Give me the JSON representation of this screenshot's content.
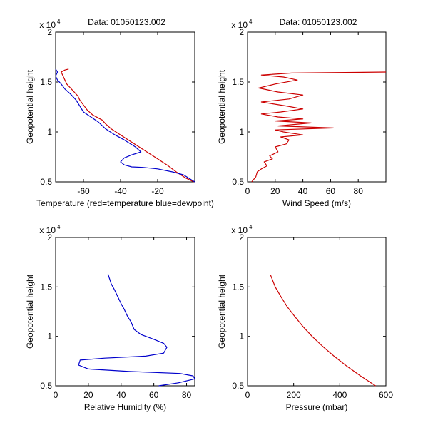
{
  "chart_data": [
    {
      "type": "line",
      "title": "Data: 01050123.002",
      "xlabel": "Temperature (red=temperature blue=dewpoint)",
      "ylabel": "Geopotential height",
      "y_exponent_label": "x 10",
      "y_exponent_power": "4",
      "xlim": [
        -75,
        0
      ],
      "ylim": [
        0.5,
        2
      ],
      "xticks": [
        -60,
        -40,
        -20
      ],
      "xtick_labels": [
        "-60",
        "-40",
        "-20"
      ],
      "yticks": [
        0.5,
        1,
        1.5,
        2
      ],
      "ytick_labels": [
        "0.5",
        "1",
        "1.5",
        "2"
      ],
      "grid": false,
      "series": [
        {
          "name": "temperature",
          "color": "#cc0000",
          "points": [
            [
              -0.5,
              0.5
            ],
            [
              -5,
              0.54
            ],
            [
              -10,
              0.6
            ],
            [
              -15,
              0.67
            ],
            [
              -20,
              0.73
            ],
            [
              -25,
              0.79
            ],
            [
              -30,
              0.85
            ],
            [
              -35,
              0.91
            ],
            [
              -40,
              0.97
            ],
            [
              -45,
              1.03
            ],
            [
              -48,
              1.08
            ],
            [
              -50,
              1.12
            ],
            [
              -55,
              1.17
            ],
            [
              -58,
              1.22
            ],
            [
              -60,
              1.27
            ],
            [
              -62,
              1.32
            ],
            [
              -63,
              1.36
            ],
            [
              -65,
              1.4
            ],
            [
              -67,
              1.44
            ],
            [
              -69,
              1.48
            ],
            [
              -70,
              1.52
            ],
            [
              -71,
              1.56
            ],
            [
              -72,
              1.6
            ],
            [
              -70,
              1.62
            ],
            [
              -68,
              1.63
            ]
          ]
        },
        {
          "name": "dewpoint",
          "color": "#0000cc",
          "points": [
            [
              0,
              0.5
            ],
            [
              -6,
              0.57
            ],
            [
              -12,
              0.6
            ],
            [
              -20,
              0.63
            ],
            [
              -28,
              0.645
            ],
            [
              -34,
              0.65
            ],
            [
              -38,
              0.67
            ],
            [
              -40,
              0.7
            ],
            [
              -38,
              0.74
            ],
            [
              -34,
              0.77
            ],
            [
              -29,
              0.8
            ],
            [
              -32,
              0.85
            ],
            [
              -38,
              0.92
            ],
            [
              -43,
              0.97
            ],
            [
              -48,
              1.03
            ],
            [
              -52,
              1.1
            ],
            [
              -56,
              1.15
            ],
            [
              -60,
              1.2
            ],
            [
              -62,
              1.26
            ],
            [
              -64,
              1.32
            ],
            [
              -67,
              1.38
            ],
            [
              -70,
              1.43
            ],
            [
              -72,
              1.48
            ],
            [
              -74,
              1.52
            ],
            [
              -75,
              1.56
            ],
            [
              -74,
              1.6
            ],
            [
              -75,
              1.63
            ]
          ]
        }
      ]
    },
    {
      "type": "line",
      "title": "Data: 01050123.002",
      "xlabel": "Wind Speed (m/s)",
      "ylabel": "Geopotential height",
      "y_exponent_label": "x 10",
      "y_exponent_power": "4",
      "xlim": [
        0,
        100
      ],
      "ylim": [
        0.5,
        2
      ],
      "xticks": [
        0,
        20,
        40,
        60,
        80
      ],
      "xtick_labels": [
        "0",
        "20",
        "40",
        "60",
        "80"
      ],
      "yticks": [
        0.5,
        1,
        1.5,
        2
      ],
      "ytick_labels": [
        "0.5",
        "1",
        "1.5",
        "2"
      ],
      "grid": false,
      "series": [
        {
          "name": "wind speed",
          "color": "#cc0000",
          "points": [
            [
              3,
              0.5
            ],
            [
              6,
              0.55
            ],
            [
              7,
              0.6
            ],
            [
              10,
              0.63
            ],
            [
              14,
              0.66
            ],
            [
              12,
              0.7
            ],
            [
              18,
              0.73
            ],
            [
              16,
              0.76
            ],
            [
              22,
              0.8
            ],
            [
              20,
              0.85
            ],
            [
              28,
              0.88
            ],
            [
              30,
              0.92
            ],
            [
              24,
              0.95
            ],
            [
              40,
              0.97
            ],
            [
              26,
              1.0
            ],
            [
              20,
              1.02
            ],
            [
              62,
              1.04
            ],
            [
              22,
              1.06
            ],
            [
              46,
              1.09
            ],
            [
              20,
              1.11
            ],
            [
              40,
              1.13
            ],
            [
              22,
              1.15
            ],
            [
              10,
              1.18
            ],
            [
              24,
              1.2
            ],
            [
              40,
              1.23
            ],
            [
              28,
              1.26
            ],
            [
              10,
              1.3
            ],
            [
              30,
              1.33
            ],
            [
              40,
              1.37
            ],
            [
              22,
              1.4
            ],
            [
              8,
              1.44
            ],
            [
              20,
              1.48
            ],
            [
              36,
              1.52
            ],
            [
              26,
              1.55
            ],
            [
              10,
              1.57
            ],
            [
              32,
              1.59
            ],
            [
              100,
              1.6
            ]
          ]
        }
      ]
    },
    {
      "type": "line",
      "title": "",
      "xlabel": "Relative Humidity (%)",
      "ylabel": "Geopotential height",
      "y_exponent_label": "x 10",
      "y_exponent_power": "4",
      "xlim": [
        0,
        85
      ],
      "ylim": [
        0.5,
        2
      ],
      "xticks": [
        0,
        20,
        40,
        60,
        80
      ],
      "xtick_labels": [
        "0",
        "20",
        "40",
        "60",
        "80"
      ],
      "yticks": [
        0.5,
        1,
        1.5,
        2
      ],
      "ytick_labels": [
        "0.5",
        "1",
        "1.5",
        "2"
      ],
      "grid": false,
      "series": [
        {
          "name": "relative humidity",
          "color": "#0000cc",
          "points": [
            [
              63,
              0.5
            ],
            [
              75,
              0.53
            ],
            [
              85,
              0.57
            ],
            [
              84,
              0.6
            ],
            [
              76,
              0.625
            ],
            [
              45,
              0.645
            ],
            [
              20,
              0.67
            ],
            [
              14,
              0.71
            ],
            [
              15,
              0.76
            ],
            [
              30,
              0.78
            ],
            [
              55,
              0.8
            ],
            [
              66,
              0.83
            ],
            [
              68,
              0.89
            ],
            [
              66,
              0.93
            ],
            [
              60,
              0.97
            ],
            [
              52,
              1.02
            ],
            [
              48,
              1.07
            ],
            [
              46,
              1.15
            ],
            [
              44,
              1.2
            ],
            [
              42,
              1.27
            ],
            [
              40,
              1.33
            ],
            [
              38,
              1.4
            ],
            [
              36,
              1.47
            ],
            [
              34,
              1.53
            ],
            [
              33,
              1.58
            ],
            [
              32,
              1.63
            ]
          ]
        }
      ]
    },
    {
      "type": "line",
      "title": "",
      "xlabel": "Pressure (mbar)",
      "ylabel": "Geopotential height",
      "y_exponent_label": "x 10",
      "y_exponent_power": "4",
      "xlim": [
        0,
        600
      ],
      "ylim": [
        0.5,
        2
      ],
      "xticks": [
        0,
        200,
        400,
        600
      ],
      "xtick_labels": [
        "0",
        "200",
        "400",
        "600"
      ],
      "yticks": [
        0.5,
        1,
        1.5,
        2
      ],
      "ytick_labels": [
        "0.5",
        "1",
        "1.5",
        "2"
      ],
      "grid": false,
      "series": [
        {
          "name": "pressure",
          "color": "#cc0000",
          "points": [
            [
              555,
              0.5
            ],
            [
              490,
              0.6
            ],
            [
              430,
              0.7
            ],
            [
              375,
              0.8
            ],
            [
              325,
              0.9
            ],
            [
              280,
              1.0
            ],
            [
              240,
              1.1
            ],
            [
              205,
              1.2
            ],
            [
              172,
              1.3
            ],
            [
              145,
              1.4
            ],
            [
              120,
              1.5
            ],
            [
              100,
              1.62
            ]
          ]
        }
      ]
    }
  ]
}
